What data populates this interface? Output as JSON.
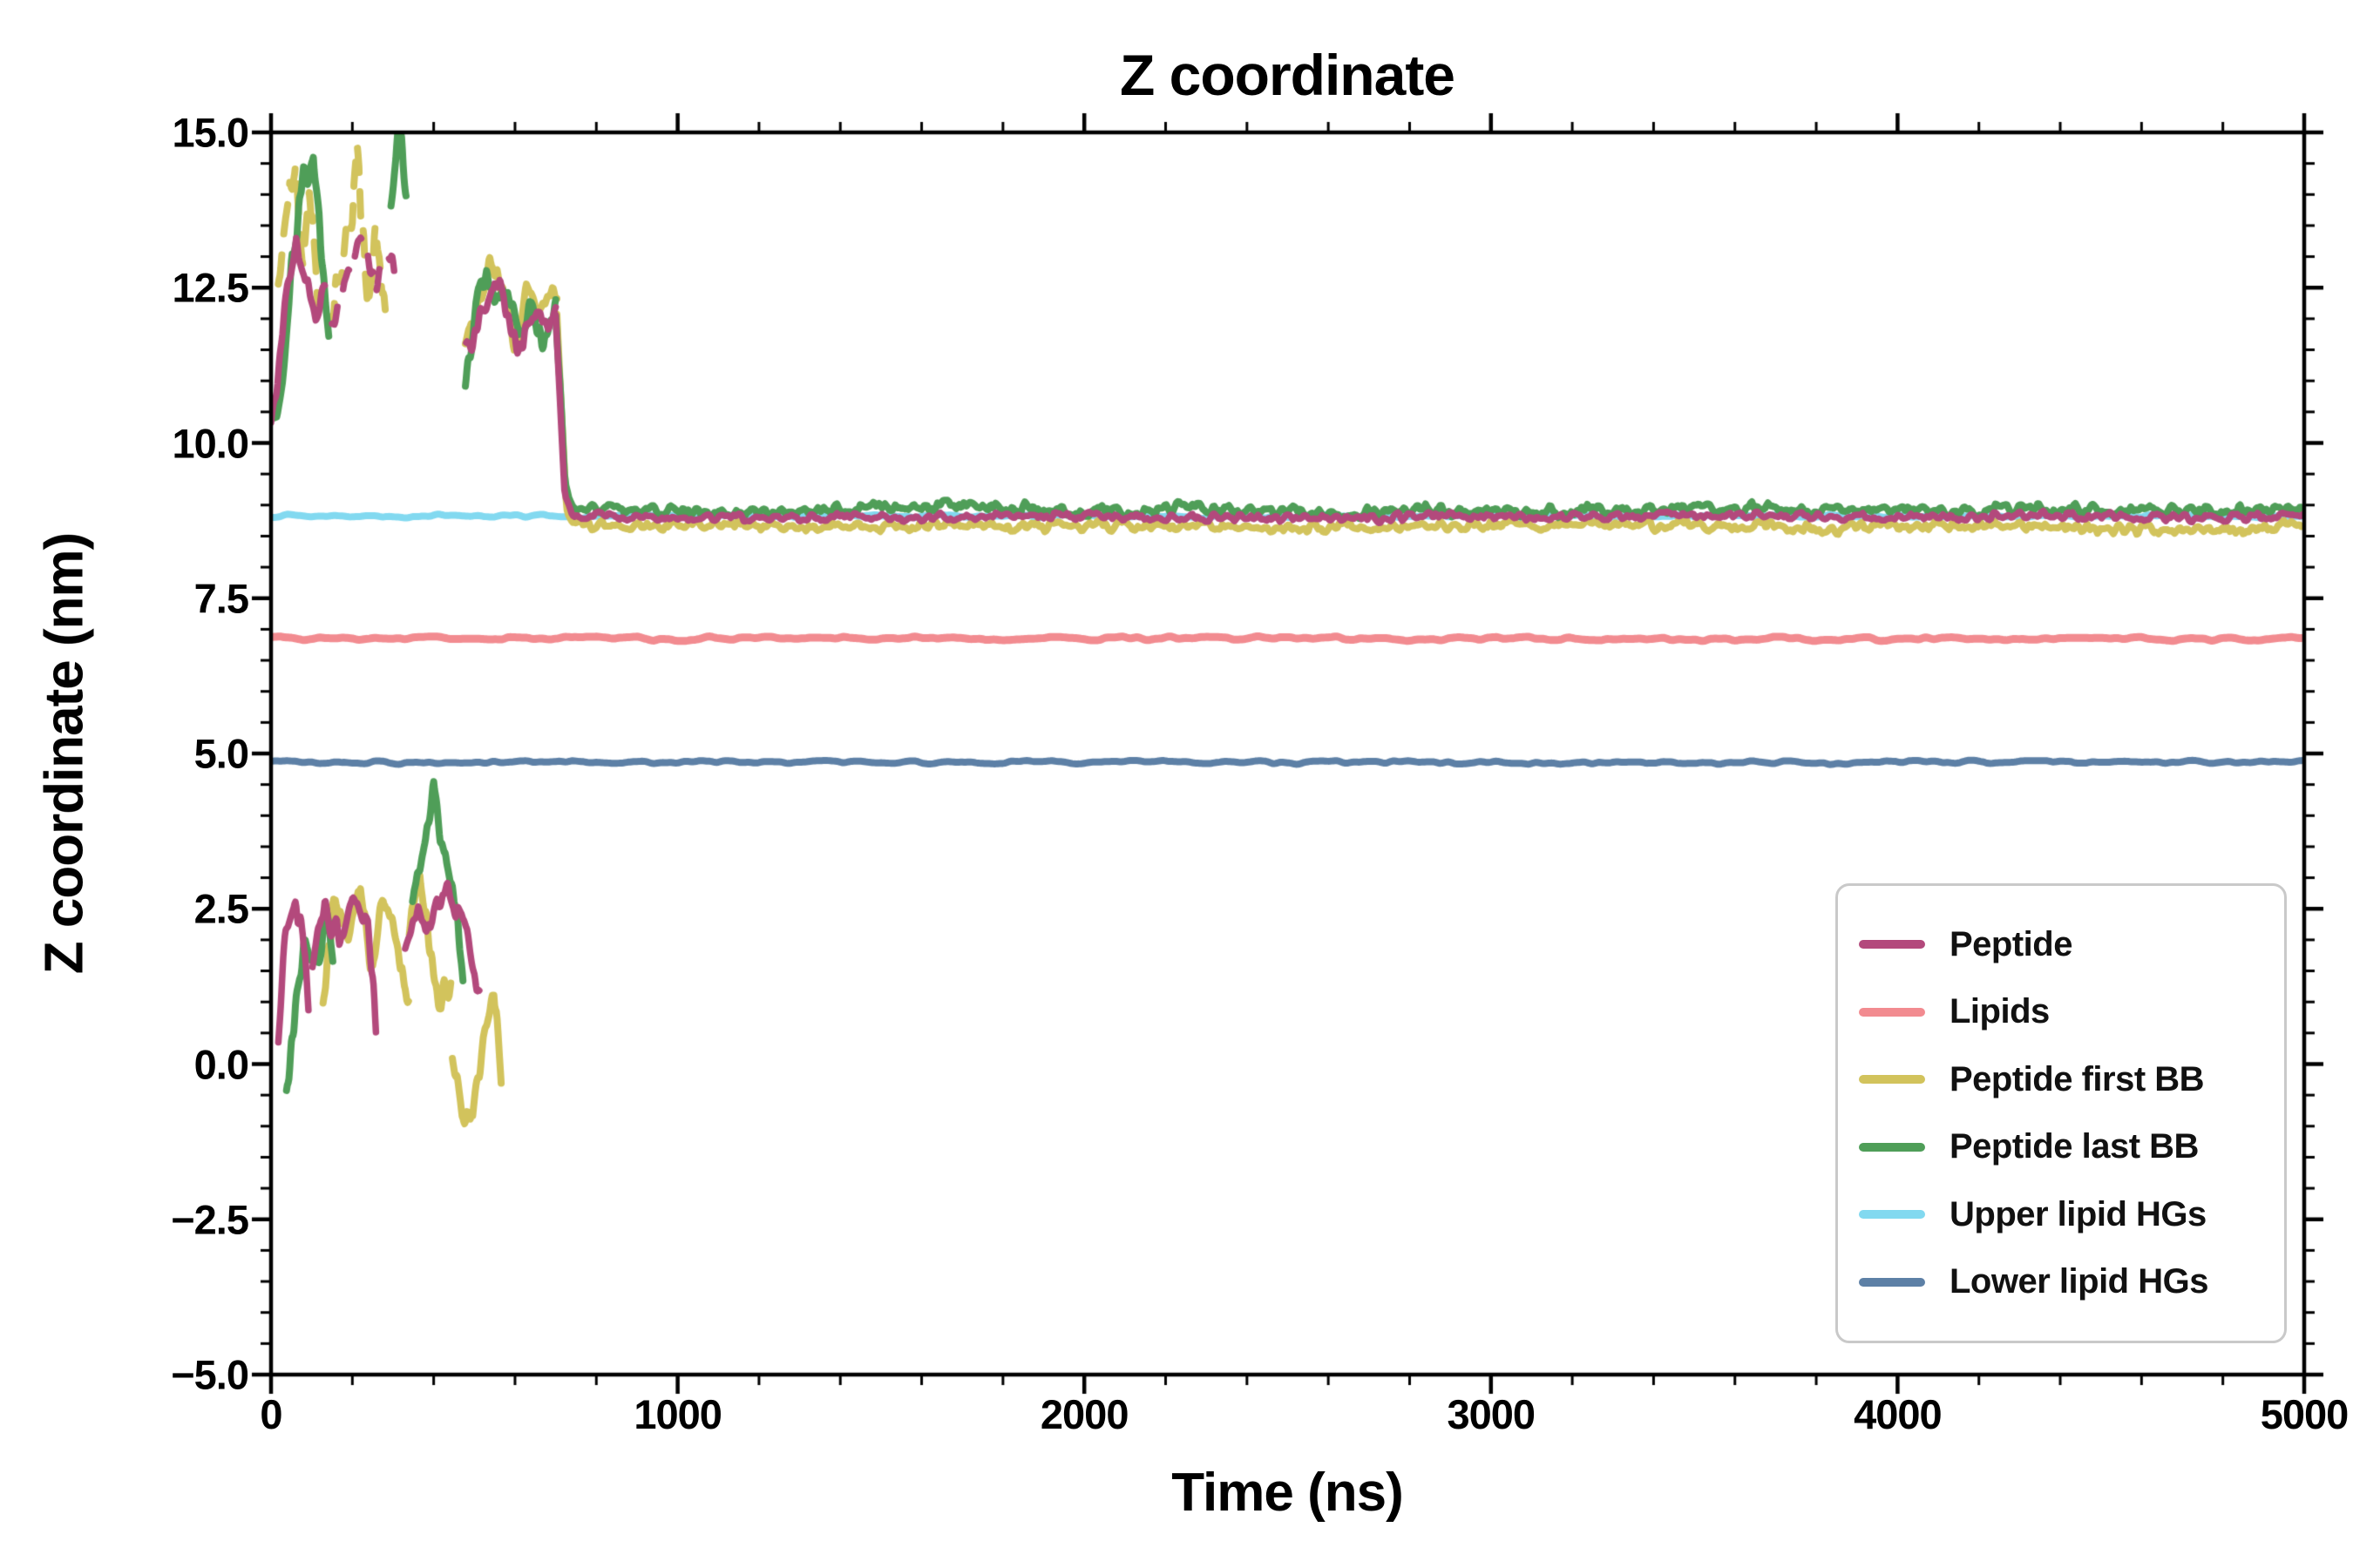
{
  "chart_data": {
    "type": "line",
    "title": "Z coordinate",
    "xlabel": "Time (ns)",
    "ylabel": "Z coordinate (nm)",
    "xlim": [
      0,
      5000
    ],
    "ylim": [
      -5,
      15
    ],
    "xticks": [
      0,
      1000,
      2000,
      3000,
      4000,
      5000
    ],
    "xtick_labels": [
      "0",
      "1000",
      "2000",
      "3000",
      "4000",
      "5000"
    ],
    "yticks": [
      -5.0,
      -2.5,
      0.0,
      2.5,
      5.0,
      7.5,
      10.0,
      12.5,
      15.0
    ],
    "ytick_labels": [
      "−5.0",
      "−2.5",
      "0.0",
      "2.5",
      "5.0",
      "7.5",
      "10.0",
      "12.5",
      "15.0"
    ],
    "x_minor_step": 200,
    "y_minor_step": 0.5,
    "grid": false,
    "legend_position": "lower right",
    "draw_order": [
      1,
      5,
      4,
      2,
      3,
      0
    ],
    "series": [
      {
        "name": "Peptide",
        "color": "#b3497c",
        "linewidth": 7.5,
        "segments": [
          {
            "x": [
              0,
              18,
              40,
              62,
              85,
              110,
              132
            ],
            "y": [
              10.2,
              11.3,
              12.6,
              13.4,
              12.7,
              12.1,
              12.4
            ],
            "noise": 0.28,
            "noise_scale": 16
          },
          {
            "x": [
              150,
              185,
              220,
              255,
              290,
              310
            ],
            "y": [
              12.1,
              12.6,
              13.2,
              12.7,
              13.0,
              12.6
            ],
            "noise": 0.3,
            "noise_scale": 18,
            "dash": [
              24,
              22
            ]
          },
          {
            "x": [
              480,
              515,
              550,
              585,
              620,
              655,
              690,
              700
            ],
            "y": [
              11.4,
              12.1,
              12.6,
              11.8,
              11.5,
              12.2,
              11.9,
              12.05
            ],
            "noise": 0.26,
            "noise_scale": 16
          },
          {
            "x": [
              700,
              710,
              722,
              740,
              900,
              1100,
              1400,
              1700,
              2000,
              2300,
              2600,
              2900,
              3200,
              3500,
              3800,
              4100,
              4400,
              4700,
              5000
            ],
            "y": [
              12.05,
              10.8,
              9.2,
              8.84,
              8.8,
              8.78,
              8.82,
              8.8,
              8.84,
              8.8,
              8.78,
              8.82,
              8.8,
              8.86,
              8.82,
              8.8,
              8.84,
              8.8,
              8.82
            ],
            "noise": 0.07,
            "noise_scale": 15
          },
          {
            "x": [
              18,
              35,
              55,
              78,
              92
            ],
            "y": [
              0.4,
              2.2,
              2.6,
              1.9,
              0.7
            ],
            "noise": 0.3,
            "noise_scale": 14
          },
          {
            "x": [
              102,
              132,
              168,
              205,
              238,
              258
            ],
            "y": [
              1.5,
              2.4,
              2.0,
              2.8,
              2.3,
              0.6
            ],
            "noise": 0.3,
            "noise_scale": 15
          },
          {
            "x": [
              330,
              362,
              392,
              422,
              452,
              482,
              512
            ],
            "y": [
              1.8,
              2.6,
              2.1,
              2.9,
              2.4,
              2.0,
              1.1
            ],
            "noise": 0.28,
            "noise_scale": 15
          }
        ]
      },
      {
        "name": "Lipids",
        "color": "#f28b90",
        "linewidth": 9,
        "segments": [
          {
            "x": [
              0,
              5000
            ],
            "y": [
              6.85,
              6.85
            ],
            "noise": 0.035,
            "noise_scale": 45
          }
        ]
      },
      {
        "name": "Peptide first BB",
        "color": "#d2c35c",
        "linewidth": 8,
        "segments": [
          {
            "x": [
              18,
              40,
              60,
              78,
              95,
              115
            ],
            "y": [
              12.3,
              13.7,
              14.4,
              13.1,
              14.0,
              12.1
            ],
            "noise": 0.5,
            "noise_scale": 13,
            "dash": [
              34,
              24
            ]
          },
          {
            "x": [
              148,
              180,
              212,
              238,
              258,
              285
            ],
            "y": [
              12.0,
              13.1,
              14.3,
              12.5,
              13.7,
              12.2
            ],
            "noise": 0.5,
            "noise_scale": 13,
            "dash": [
              28,
              22
            ]
          },
          {
            "x": [
              478,
              508,
              538,
              568,
              598,
              628,
              658,
              688,
              703
            ],
            "y": [
              11.6,
              12.3,
              12.8,
              12.4,
              11.7,
              12.4,
              11.9,
              12.3,
              12.1
            ],
            "noise": 0.3,
            "noise_scale": 15
          },
          {
            "x": [
              703,
              714,
              726,
              742,
              900,
              1100,
              1400,
              1700,
              2000,
              2300,
              2600,
              2900,
              3200,
              3500,
              3800,
              4100,
              4400,
              4700,
              5000
            ],
            "y": [
              12.1,
              10.5,
              9.0,
              8.7,
              8.66,
              8.7,
              8.64,
              8.68,
              8.66,
              8.7,
              8.64,
              8.66,
              8.7,
              8.66,
              8.62,
              8.68,
              8.64,
              8.6,
              8.66
            ],
            "noise": 0.09,
            "noise_scale": 15
          },
          {
            "x": [
              128,
              158,
              190,
              220,
              250,
              280,
              312,
              338
            ],
            "y": [
              1.1,
              2.9,
              2.0,
              3.1,
              1.4,
              2.6,
              1.8,
              1.0
            ],
            "noise": 0.35,
            "noise_scale": 14
          },
          {
            "x": [
              340,
              366,
              392,
              418,
              442
            ],
            "y": [
              2.2,
              3.2,
              1.6,
              0.8,
              1.5
            ],
            "noise": 0.3,
            "noise_scale": 14
          },
          {
            "x": [
              446,
              470,
              496,
              522,
              548,
              566
            ],
            "y": [
              0.2,
              -0.9,
              -1.1,
              0.5,
              1.2,
              -0.4
            ],
            "noise": 0.3,
            "noise_scale": 14
          }
        ]
      },
      {
        "name": "Peptide last BB",
        "color": "#4f9e58",
        "linewidth": 8,
        "segments": [
          {
            "x": [
              8,
              28,
              52,
              80,
              104,
              122,
              142
            ],
            "y": [
              10.4,
              11.3,
              13.0,
              14.1,
              14.8,
              13.0,
              12.0
            ],
            "noise": 0.4,
            "noise_scale": 14
          },
          {
            "x": [
              295,
              315,
              332
            ],
            "y": [
              14.1,
              15.0,
              14.3
            ],
            "noise": 0.3,
            "noise_scale": 12
          },
          {
            "x": [
              478,
              504,
              530,
              556,
              582,
              610,
              640,
              670,
              700
            ],
            "y": [
              11.0,
              12.2,
              12.6,
              12.0,
              12.5,
              11.6,
              12.2,
              11.8,
              12.15
            ],
            "noise": 0.3,
            "noise_scale": 15
          },
          {
            "x": [
              700,
              711,
              723,
              740,
              900,
              1100,
              1400,
              1700,
              2000,
              2300,
              2600,
              2900,
              3200,
              3500,
              3800,
              4100,
              4400,
              4700,
              5000
            ],
            "y": [
              12.15,
              10.9,
              9.3,
              8.9,
              8.92,
              8.88,
              8.92,
              8.96,
              8.9,
              8.94,
              8.88,
              8.92,
              8.9,
              8.98,
              8.92,
              8.88,
              8.94,
              8.9,
              8.92
            ],
            "noise": 0.1,
            "noise_scale": 15
          },
          {
            "x": [
              38,
              60,
              85,
              110,
              135,
              152
            ],
            "y": [
              -0.3,
              1.2,
              2.3,
              1.6,
              2.4,
              1.4
            ],
            "noise": 0.35,
            "noise_scale": 14
          },
          {
            "x": [
              348,
              374,
              400,
              426,
              452,
              472
            ],
            "y": [
              2.6,
              3.4,
              4.5,
              3.2,
              2.6,
              1.6
            ],
            "noise": 0.35,
            "noise_scale": 14
          }
        ]
      },
      {
        "name": "Upper lipid HGs",
        "color": "#82d9f0",
        "linewidth": 8,
        "segments": [
          {
            "x": [
              0,
              5000
            ],
            "y": [
              8.82,
              8.82
            ],
            "noise": 0.028,
            "noise_scale": 45
          }
        ]
      },
      {
        "name": "Lower lipid HGs",
        "color": "#5d80a6",
        "linewidth": 8,
        "segments": [
          {
            "x": [
              0,
              5000
            ],
            "y": [
              4.86,
              4.86
            ],
            "noise": 0.032,
            "noise_scale": 45
          }
        ]
      }
    ]
  }
}
